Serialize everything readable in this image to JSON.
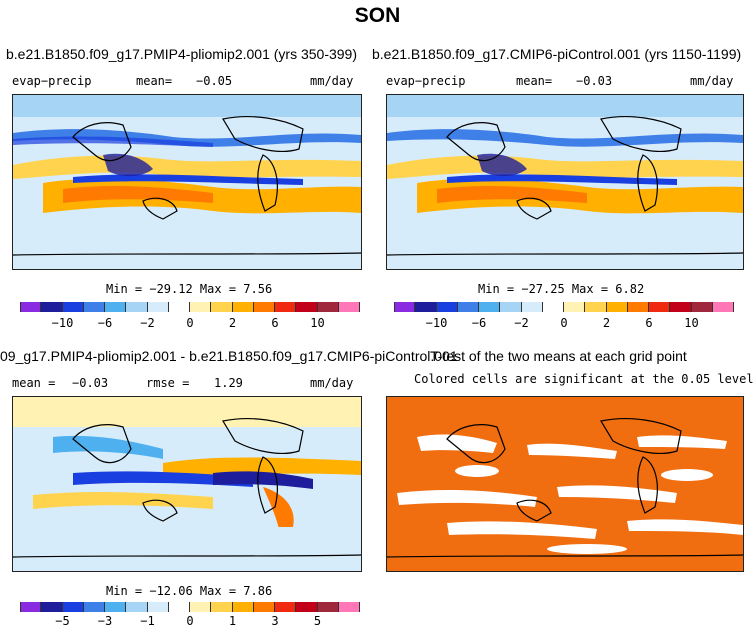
{
  "title": "SON",
  "panels": [
    {
      "id": "p1",
      "title": "b.e21.B1850.f09_g17.PMIP4-pliomip2.001 (yrs 350-399)",
      "variable": "evap−precip",
      "mean_label": "mean=",
      "mean_value": "−0.05",
      "units": "mm/day",
      "minmax": "Min = −29.12 Max =    7.56"
    },
    {
      "id": "p2",
      "title": "b.e21.B1850.f09_g17.CMIP6-piControl.001 (yrs 1150-1199)",
      "variable": "evap−precip",
      "mean_label": "mean=",
      "mean_value": "−0.03",
      "units": "mm/day",
      "minmax": "Min = −27.25 Max =    6.82"
    },
    {
      "id": "p3",
      "title": "09_g17.PMIP4-pliomip2.001 - b.e21.B1850.f09_g17.CMIP6-piControl.001",
      "mean_label": "mean =",
      "mean_value": "−0.03",
      "rmse_label": "rmse =",
      "rmse_value": "1.29",
      "units": "mm/day",
      "minmax": "Min = −12.06 Max =    7.86"
    },
    {
      "id": "p4",
      "title": "T-test of the two means at each grid point",
      "subtitle": "Colored cells are significant at the 0.05 level"
    }
  ],
  "colorbar_full": {
    "colors": [
      "#8a2be2",
      "#1e1e9c",
      "#1a3fe0",
      "#3f7fe8",
      "#4fb0f0",
      "#a6d4f5",
      "#d7ecfa",
      "#ffffff",
      "#fff2b3",
      "#ffd34d",
      "#ffb000",
      "#ff7a00",
      "#ef2a10",
      "#c2001a",
      "#a0283c",
      "#ff77b7"
    ],
    "tick_labels": [
      "−10",
      "−6",
      "−2",
      "0",
      "2",
      "6",
      "10"
    ]
  },
  "colorbar_diff": {
    "colors": [
      "#8a2be2",
      "#1e1e9c",
      "#1a3fe0",
      "#3f7fe8",
      "#4fb0f0",
      "#a6d4f5",
      "#d7ecfa",
      "#ffffff",
      "#fff2b3",
      "#ffd34d",
      "#ffb000",
      "#ff7a00",
      "#ef2a10",
      "#c2001a",
      "#a0283c",
      "#ff77b7"
    ],
    "tick_labels": [
      "−5",
      "−3",
      "−1",
      "0",
      "1",
      "3",
      "5"
    ]
  }
}
